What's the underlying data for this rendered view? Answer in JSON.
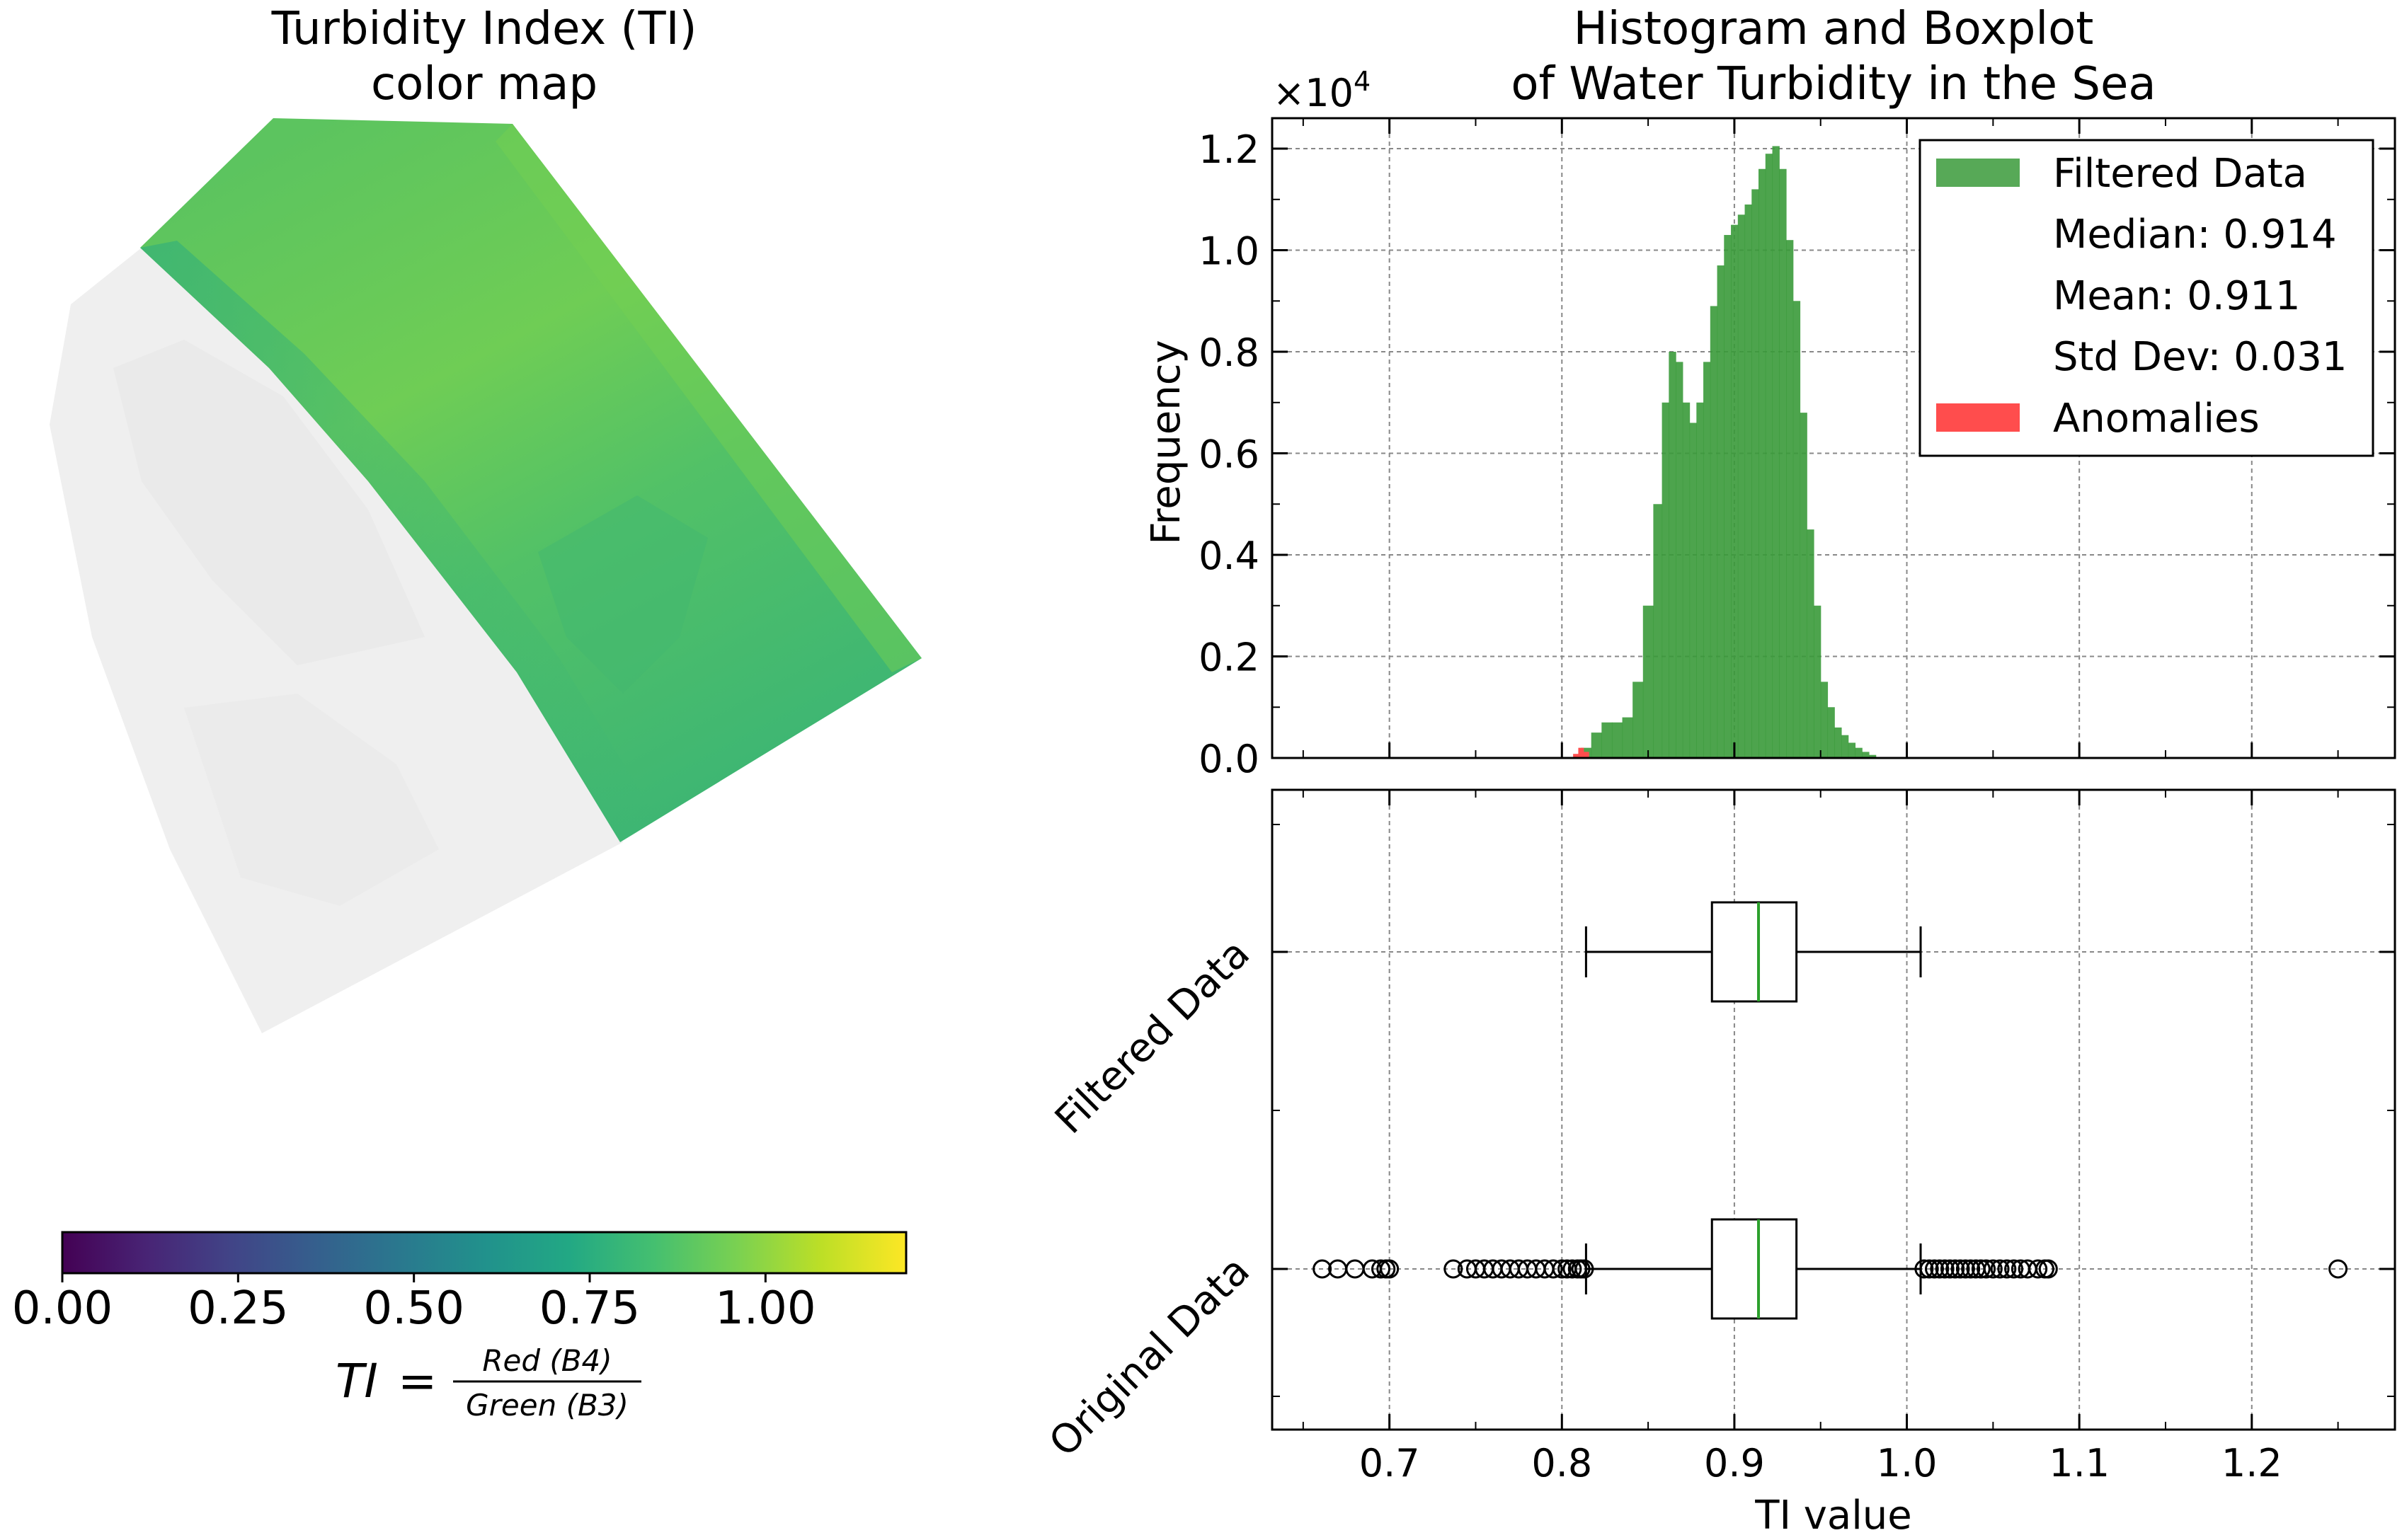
{
  "left_panel": {
    "title_line1": "Turbidity Index (TI)",
    "title_line2": "color map",
    "colorbar": {
      "colormap": "viridis",
      "vmin": 0.0,
      "vmax": 1.2,
      "ticks": [
        "0.00",
        "0.25",
        "0.50",
        "0.75",
        "1.00"
      ],
      "tick_values": [
        0.0,
        0.25,
        0.5,
        0.75,
        1.0
      ],
      "formula_lhs": "TI",
      "formula_eq": "=",
      "formula_num": "Red (B4)",
      "formula_den": "Green (B3)"
    },
    "map": {
      "water_color_main": "#6fcd55",
      "water_color_mid": "#50bf6a",
      "water_color_shore": "#2fae7c",
      "land_color": "#f0f0f0"
    }
  },
  "chart_data": [
    {
      "type": "bar",
      "title": "Histogram and Boxplot\nof Water Turbidity in the Sea",
      "title_line1": "Histogram and Boxplot",
      "title_line2": "of Water Turbidity in the Sea",
      "ylabel": "Frequency",
      "y_multiplier": "×10",
      "y_multiplier_exp": "4",
      "xlim": [
        0.632,
        1.283
      ],
      "ylim": [
        0,
        12600
      ],
      "yticks": [
        0,
        2000,
        4000,
        6000,
        8000,
        10000,
        12000
      ],
      "ytick_labels": [
        "0.0",
        "0.2",
        "0.4",
        "0.6",
        "0.8",
        "1.0",
        "1.2"
      ],
      "grid": true,
      "legend_position": "top-right",
      "legend": {
        "filtered_label": "Filtered Data",
        "median_text": "Median: 0.914",
        "mean_text": "Mean: 0.911",
        "std_text": "Std Dev: 0.031",
        "anomalies_label": "Anomalies"
      },
      "series": [
        {
          "name": "Filtered Data",
          "color": "#3a9a3a",
          "x": [
            0.814,
            0.82,
            0.826,
            0.832,
            0.838,
            0.844,
            0.85,
            0.856,
            0.86,
            0.864,
            0.868,
            0.872,
            0.876,
            0.88,
            0.884,
            0.888,
            0.892,
            0.896,
            0.9,
            0.904,
            0.908,
            0.912,
            0.916,
            0.92,
            0.924,
            0.928,
            0.932,
            0.936,
            0.94,
            0.944,
            0.948,
            0.952,
            0.956,
            0.96,
            0.964,
            0.968,
            0.972,
            0.976,
            0.98
          ],
          "values": [
            200,
            500,
            700,
            700,
            800,
            1500,
            3000,
            5000,
            7000,
            8000,
            7800,
            7000,
            6600,
            7000,
            7800,
            8900,
            9700,
            10300,
            10500,
            10700,
            10900,
            11200,
            11600,
            11900,
            12050,
            11600,
            10200,
            9000,
            6800,
            4500,
            3000,
            1500,
            1000,
            600,
            450,
            300,
            200,
            120,
            60
          ]
        },
        {
          "name": "Anomalies",
          "color": "#ff4d4d",
          "x": [
            0.808,
            0.811,
            0.814
          ],
          "values": [
            80,
            200,
            120
          ]
        }
      ]
    },
    {
      "type": "boxplot",
      "xlabel": "TI value",
      "xlim": [
        0.632,
        1.283
      ],
      "xticks": [
        0.7,
        0.8,
        0.9,
        1.0,
        1.1,
        1.2
      ],
      "xtick_labels": [
        "0.7",
        "0.8",
        "0.9",
        "1.0",
        "1.1",
        "1.2"
      ],
      "grid": true,
      "categories": [
        "Filtered Data",
        "Original Data"
      ],
      "boxes": [
        {
          "name": "Filtered Data",
          "whisker_low": 0.814,
          "q1": 0.887,
          "median": 0.914,
          "q3": 0.936,
          "whisker_high": 1.008,
          "outliers": []
        },
        {
          "name": "Original Data",
          "whisker_low": 0.814,
          "q1": 0.887,
          "median": 0.914,
          "q3": 0.936,
          "whisker_high": 1.008,
          "outliers": [
            0.661,
            0.67,
            0.68,
            0.69,
            0.695,
            0.698,
            0.7,
            0.737,
            0.745,
            0.75,
            0.755,
            0.76,
            0.765,
            0.77,
            0.775,
            0.78,
            0.785,
            0.79,
            0.795,
            0.8,
            0.803,
            0.806,
            0.809,
            0.811,
            0.813,
            1.01,
            1.013,
            1.016,
            1.019,
            1.022,
            1.025,
            1.028,
            1.031,
            1.034,
            1.037,
            1.04,
            1.043,
            1.046,
            1.05,
            1.054,
            1.058,
            1.062,
            1.066,
            1.07,
            1.076,
            1.08,
            1.082,
            1.25
          ]
        }
      ],
      "median_color": "#2ca02c"
    }
  ]
}
